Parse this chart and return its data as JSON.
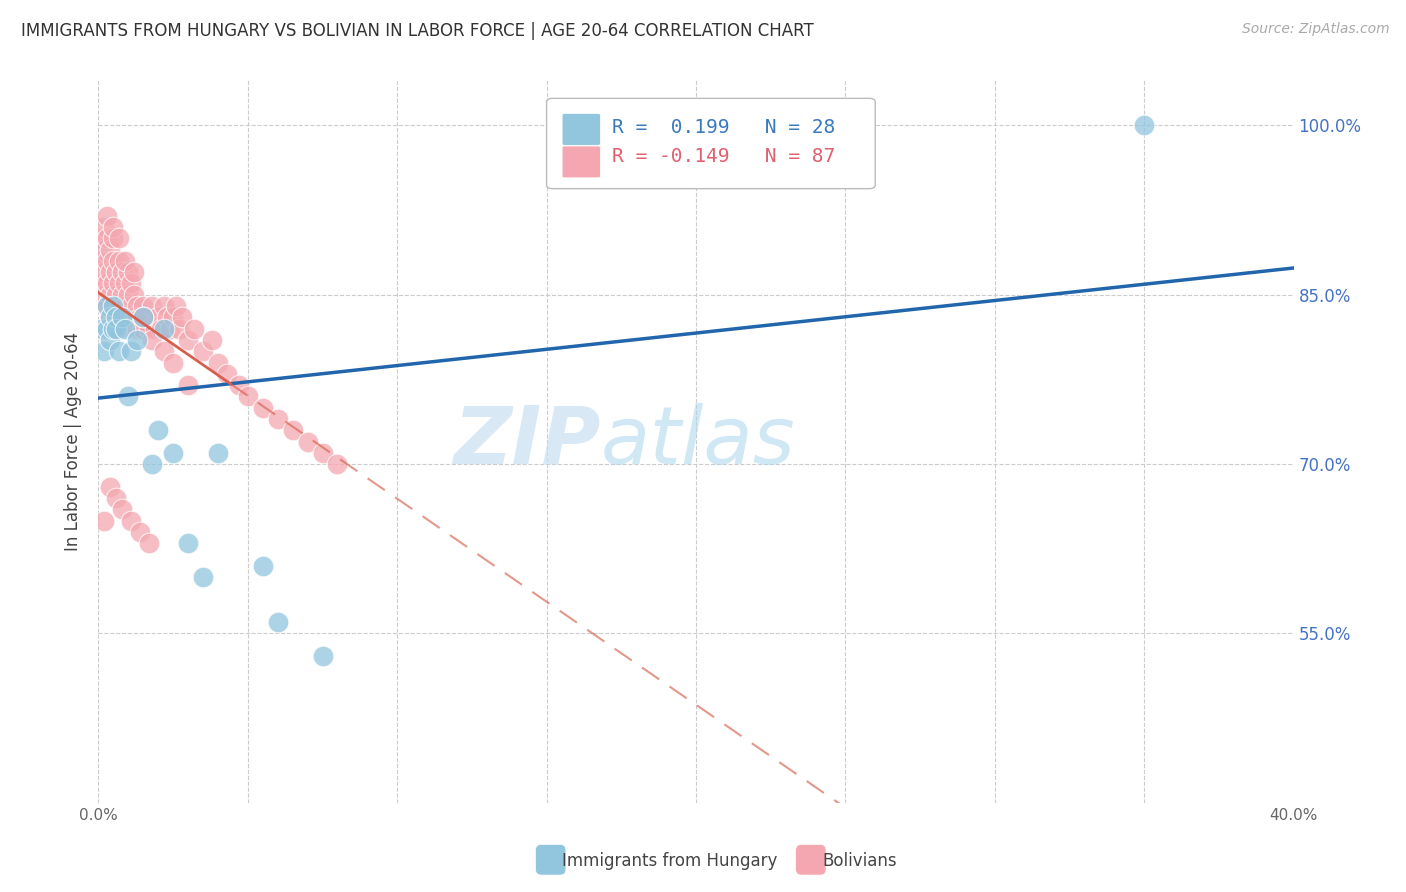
{
  "title": "IMMIGRANTS FROM HUNGARY VS BOLIVIAN IN LABOR FORCE | AGE 20-64 CORRELATION CHART",
  "source": "Source: ZipAtlas.com",
  "ylabel": "In Labor Force | Age 20-64",
  "xlim": [
    0.0,
    0.4
  ],
  "ylim": [
    0.4,
    1.04
  ],
  "xticks": [
    0.0,
    0.05,
    0.1,
    0.15,
    0.2,
    0.25,
    0.3,
    0.35,
    0.4
  ],
  "xticklabels": [
    "0.0%",
    "",
    "",
    "",
    "",
    "",
    "",
    "",
    "40.0%"
  ],
  "yticks": [
    0.55,
    0.7,
    0.85,
    1.0
  ],
  "yticklabels": [
    "55.0%",
    "70.0%",
    "85.0%",
    "100.0%"
  ],
  "grid_color": "#cccccc",
  "background_color": "#ffffff",
  "blue_color": "#92c5de",
  "pink_color": "#f4a7b0",
  "blue_line_color": "#2166ac",
  "pink_line_color": "#d6604d",
  "legend_r_blue": "0.199",
  "legend_n_blue": "28",
  "legend_r_pink": "-0.149",
  "legend_n_pink": "87",
  "legend_label_blue": "Immigrants from Hungary",
  "legend_label_pink": "Bolivians",
  "watermark_zip": "ZIP",
  "watermark_atlas": "atlas",
  "hungary_x": [
    0.001,
    0.002,
    0.003,
    0.003,
    0.004,
    0.004,
    0.005,
    0.005,
    0.006,
    0.006,
    0.007,
    0.008,
    0.009,
    0.01,
    0.011,
    0.013,
    0.015,
    0.018,
    0.02,
    0.022,
    0.025,
    0.03,
    0.035,
    0.04,
    0.055,
    0.06,
    0.075,
    0.35
  ],
  "hungary_y": [
    0.82,
    0.8,
    0.84,
    0.82,
    0.83,
    0.81,
    0.84,
    0.82,
    0.83,
    0.82,
    0.8,
    0.83,
    0.82,
    0.76,
    0.8,
    0.81,
    0.83,
    0.7,
    0.73,
    0.82,
    0.71,
    0.63,
    0.6,
    0.71,
    0.61,
    0.56,
    0.53,
    1.0
  ],
  "bolivia_x": [
    0.001,
    0.001,
    0.001,
    0.002,
    0.002,
    0.002,
    0.002,
    0.003,
    0.003,
    0.003,
    0.003,
    0.004,
    0.004,
    0.004,
    0.004,
    0.005,
    0.005,
    0.005,
    0.005,
    0.006,
    0.006,
    0.006,
    0.007,
    0.007,
    0.007,
    0.007,
    0.008,
    0.008,
    0.008,
    0.009,
    0.009,
    0.01,
    0.01,
    0.01,
    0.011,
    0.011,
    0.012,
    0.012,
    0.013,
    0.013,
    0.014,
    0.015,
    0.015,
    0.016,
    0.017,
    0.018,
    0.019,
    0.02,
    0.021,
    0.022,
    0.023,
    0.024,
    0.025,
    0.026,
    0.027,
    0.028,
    0.03,
    0.032,
    0.035,
    0.038,
    0.04,
    0.043,
    0.047,
    0.05,
    0.055,
    0.06,
    0.065,
    0.07,
    0.075,
    0.08,
    0.003,
    0.005,
    0.007,
    0.009,
    0.012,
    0.015,
    0.018,
    0.022,
    0.025,
    0.03,
    0.002,
    0.004,
    0.006,
    0.008,
    0.011,
    0.014,
    0.017
  ],
  "bolivia_y": [
    0.88,
    0.86,
    0.9,
    0.89,
    0.87,
    0.91,
    0.85,
    0.88,
    0.86,
    0.9,
    0.84,
    0.87,
    0.85,
    0.89,
    0.83,
    0.86,
    0.88,
    0.84,
    0.9,
    0.87,
    0.85,
    0.83,
    0.88,
    0.86,
    0.84,
    0.82,
    0.87,
    0.85,
    0.83,
    0.86,
    0.84,
    0.85,
    0.83,
    0.87,
    0.84,
    0.86,
    0.85,
    0.83,
    0.84,
    0.82,
    0.83,
    0.84,
    0.82,
    0.83,
    0.82,
    0.84,
    0.82,
    0.83,
    0.82,
    0.84,
    0.83,
    0.82,
    0.83,
    0.84,
    0.82,
    0.83,
    0.81,
    0.82,
    0.8,
    0.81,
    0.79,
    0.78,
    0.77,
    0.76,
    0.75,
    0.74,
    0.73,
    0.72,
    0.71,
    0.7,
    0.92,
    0.91,
    0.9,
    0.88,
    0.87,
    0.83,
    0.81,
    0.8,
    0.79,
    0.77,
    0.65,
    0.68,
    0.67,
    0.66,
    0.65,
    0.64,
    0.63
  ]
}
